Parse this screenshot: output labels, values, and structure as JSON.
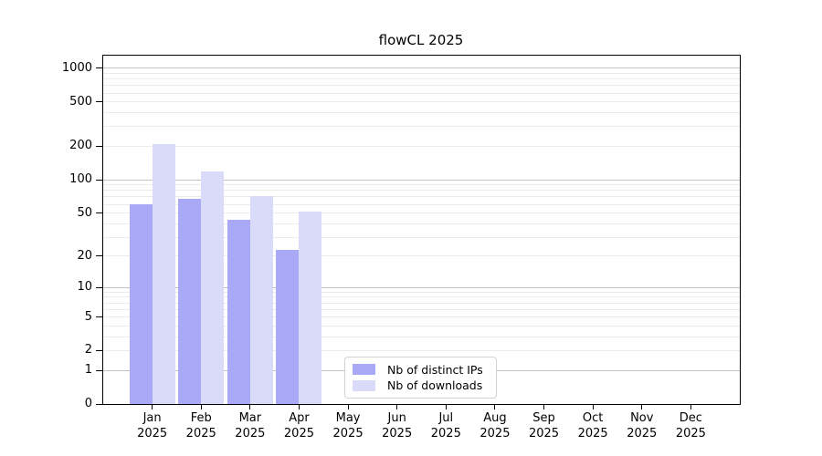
{
  "title": "flowCL 2025",
  "chart_data": {
    "type": "bar",
    "title": "flowCL 2025",
    "x_categories": [
      "Jan",
      "Feb",
      "Mar",
      "Apr",
      "May",
      "Jun",
      "Jul",
      "Aug",
      "Sep",
      "Oct",
      "Nov",
      "Dec"
    ],
    "x_year": "2025",
    "series": [
      {
        "name": "Nb of distinct IPs",
        "color": "#a9a9f7",
        "values": [
          60,
          67,
          43,
          23,
          null,
          null,
          null,
          null,
          null,
          null,
          null,
          null
        ]
      },
      {
        "name": "Nb of downloads",
        "color": "#dadaf9",
        "values": [
          210,
          120,
          71,
          52,
          null,
          null,
          null,
          null,
          null,
          null,
          null,
          null
        ]
      }
    ],
    "y_ticks": [
      0,
      1,
      2,
      5,
      10,
      20,
      50,
      100,
      200,
      500,
      1000
    ],
    "y_scale": "log10(1+y)",
    "ylim": [
      0,
      1300
    ],
    "grid": "horizontal, major (1,10,100,1000) and minor (2-9 per decade)",
    "legend_position": "inside bottom-center",
    "colors": {
      "major_grid": "#c2c2c2",
      "minor_grid": "#ebebeb",
      "spine": "#000000",
      "text": "#000000",
      "legend_border": "#d3d3d3"
    }
  }
}
